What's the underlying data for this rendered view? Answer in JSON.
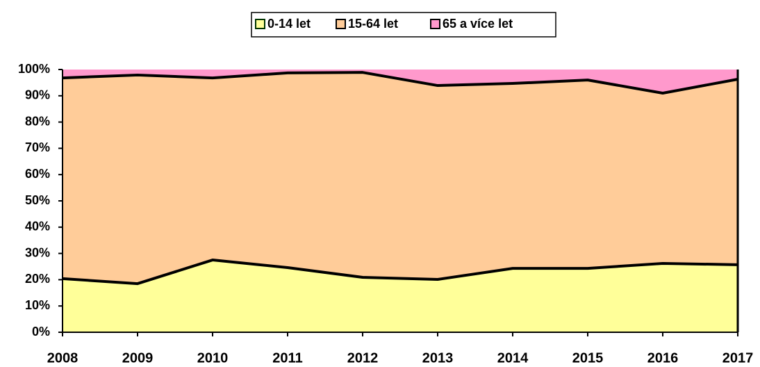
{
  "chart_data": {
    "type": "stacked_area",
    "categories": [
      "2008",
      "2009",
      "2010",
      "2011",
      "2012",
      "2013",
      "2014",
      "2015",
      "2016",
      "2017"
    ],
    "series": [
      {
        "name": "0-14 let",
        "color": "#ffff99",
        "values": [
          20.4,
          18.5,
          27.5,
          24.6,
          20.9,
          20.1,
          24.3,
          24.3,
          26.2,
          25.7
        ]
      },
      {
        "name": "15-64 let",
        "color": "#ffcc99",
        "values": [
          76.4,
          79.4,
          69.3,
          74.1,
          78.0,
          73.8,
          70.4,
          71.7,
          64.8,
          70.6
        ]
      },
      {
        "name": "65 a více let",
        "color": "#ff99cc",
        "values": [
          3.2,
          2.1,
          3.2,
          1.3,
          1.1,
          6.1,
          5.3,
          4.0,
          9.0,
          3.7
        ]
      }
    ],
    "ylim": [
      0,
      100
    ],
    "yticks": [
      {
        "value": 0,
        "label": "0%"
      },
      {
        "value": 10,
        "label": "10%"
      },
      {
        "value": 20,
        "label": "20%"
      },
      {
        "value": 30,
        "label": "30%"
      },
      {
        "value": 40,
        "label": "40%"
      },
      {
        "value": 50,
        "label": "50%"
      },
      {
        "value": 60,
        "label": "60%"
      },
      {
        "value": 70,
        "label": "70%"
      },
      {
        "value": 80,
        "label": "80%"
      },
      {
        "value": 90,
        "label": "90%"
      },
      {
        "value": 100,
        "label": "100%"
      }
    ],
    "legend": "top"
  }
}
